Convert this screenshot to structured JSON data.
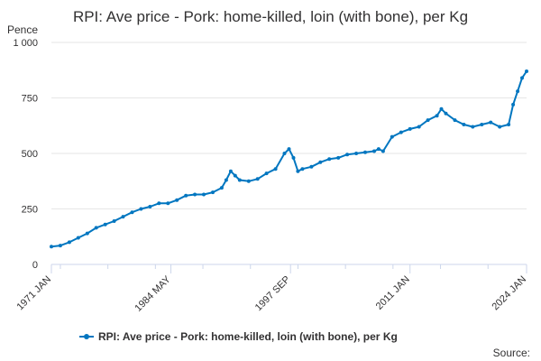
{
  "chart_data": {
    "type": "line",
    "title": "RPI: Ave price - Pork: home-killed, loin (with bone), per Kg",
    "ylabel": "Pence",
    "xlabel": "",
    "ylim": [
      0,
      1000
    ],
    "y_ticks": [
      "0",
      "250",
      "500",
      "750",
      "1 000"
    ],
    "y_tick_values": [
      0,
      250,
      500,
      750,
      1000
    ],
    "x_ticks": [
      "1971 JAN",
      "1984 MAY",
      "1997 SEP",
      "2011 JAN",
      "2024 JAN"
    ],
    "x_tick_values": [
      1971.0,
      1984.33,
      1997.67,
      2011.0,
      2024.0
    ],
    "xlim": [
      1971.0,
      2024.0
    ],
    "grid": "horizontal",
    "legend": "bottom-center",
    "series": [
      {
        "name": "RPI: Ave price - Pork: home-killed, loin (with bone), per Kg",
        "color": "#0076c0",
        "x": [
          1971.0,
          1972.0,
          1973.0,
          1974.0,
          1975.0,
          1976.0,
          1977.0,
          1978.0,
          1979.0,
          1980.0,
          1981.0,
          1982.0,
          1983.0,
          1984.0,
          1985.0,
          1986.0,
          1987.0,
          1988.0,
          1989.0,
          1990.0,
          1990.5,
          1991.0,
          1991.5,
          1992.0,
          1993.0,
          1994.0,
          1995.0,
          1996.0,
          1997.0,
          1997.5,
          1998.0,
          1998.5,
          1999.0,
          2000.0,
          2001.0,
          2002.0,
          2003.0,
          2004.0,
          2005.0,
          2006.0,
          2007.0,
          2007.5,
          2008.0,
          2009.0,
          2010.0,
          2011.0,
          2012.0,
          2013.0,
          2014.0,
          2014.5,
          2015.0,
          2016.0,
          2017.0,
          2018.0,
          2019.0,
          2020.0,
          2021.0,
          2022.0,
          2022.5,
          2023.0,
          2023.5,
          2024.0
        ],
        "values": [
          80,
          85,
          100,
          120,
          140,
          165,
          180,
          195,
          215,
          235,
          250,
          260,
          275,
          275,
          290,
          310,
          315,
          315,
          325,
          345,
          380,
          420,
          400,
          380,
          375,
          385,
          410,
          430,
          500,
          520,
          480,
          420,
          430,
          440,
          460,
          475,
          480,
          495,
          500,
          505,
          510,
          520,
          510,
          575,
          595,
          610,
          620,
          650,
          670,
          700,
          680,
          650,
          630,
          620,
          630,
          640,
          620,
          630,
          720,
          780,
          840,
          870
        ]
      }
    ]
  },
  "legend": {
    "label": "RPI: Ave price - Pork: home-killed, loin (with bone), per Kg"
  },
  "source": {
    "label": "Source:"
  }
}
